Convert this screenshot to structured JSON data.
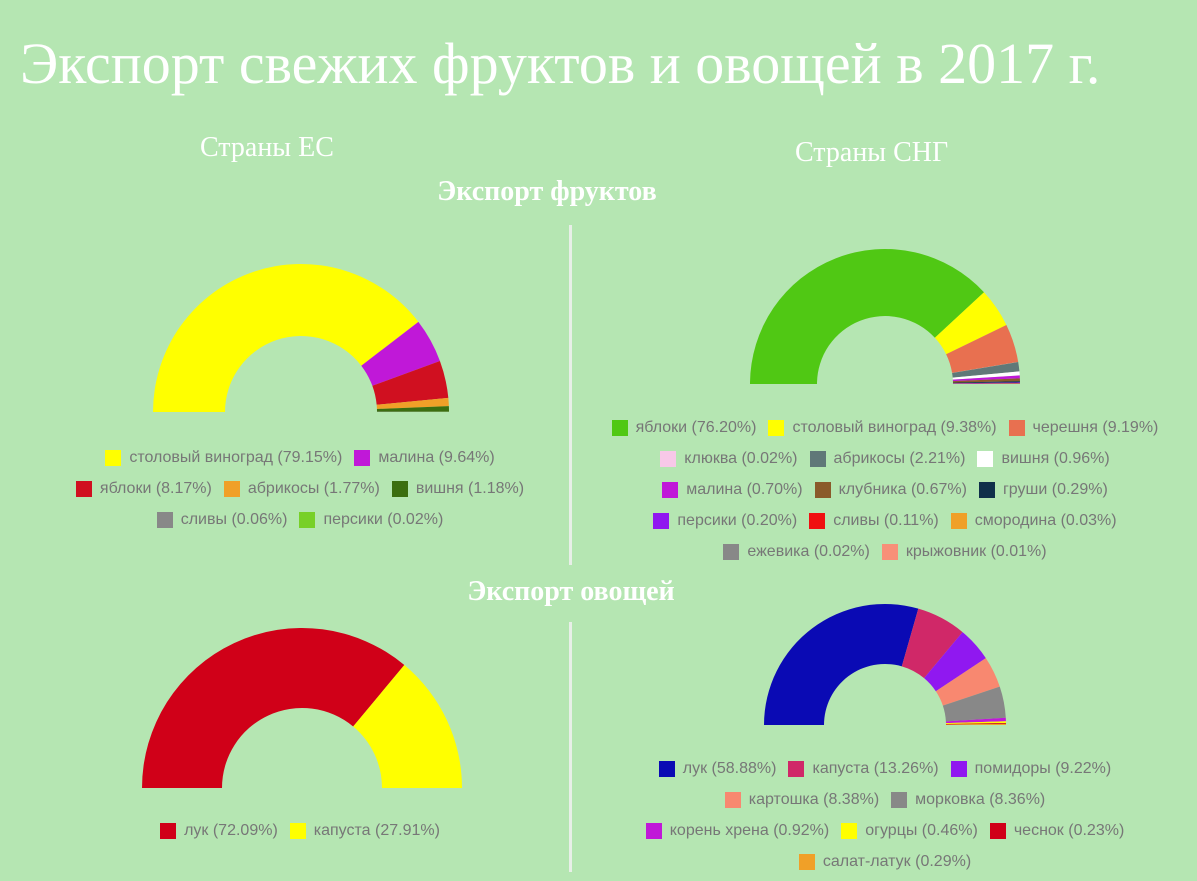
{
  "title": "Экспорт свежих фруктов и овощей в 2017 г.",
  "regions": {
    "eu": "Страны  ЕС",
    "cis": "Страны  СНГ"
  },
  "sections": {
    "fruits": "Экспорт фруктов",
    "vegetables": "Экспорт овощей"
  },
  "chart_data": [
    {
      "type": "pie",
      "variant": "half-donut",
      "slices": [
        {
          "label": "столовый виноград (79.15%)",
          "value": 79.15,
          "color": "#ffff00"
        },
        {
          "label": "малина (9.64%)",
          "value": 9.64,
          "color": "#c018d8"
        },
        {
          "label": "яблоки (8.17%)",
          "value": 8.17,
          "color": "#d01020"
        },
        {
          "label": "абрикосы (1.77%)",
          "value": 1.77,
          "color": "#f0a028"
        },
        {
          "label": "вишня (1.18%)",
          "value": 1.18,
          "color": "#3c6e10"
        },
        {
          "label": "сливы (0.06%)",
          "value": 0.06,
          "color": "#888888"
        },
        {
          "label": "персики (0.02%)",
          "value": 0.02,
          "color": "#78d028"
        }
      ]
    },
    {
      "type": "pie",
      "variant": "half-donut",
      "slices": [
        {
          "label": "яблоки (76.20%)",
          "value": 76.2,
          "color": "#50c814"
        },
        {
          "label": "столовый виноград (9.38%)",
          "value": 9.38,
          "color": "#ffff00"
        },
        {
          "label": "черешня (9.19%)",
          "value": 9.19,
          "color": "#e87050"
        },
        {
          "label": "клюква (0.02%)",
          "value": 0.02,
          "color": "#f8c8e8"
        },
        {
          "label": "абрикосы (2.21%)",
          "value": 2.21,
          "color": "#607878"
        },
        {
          "label": "вишня (0.96%)",
          "value": 0.96,
          "color": "#ffffff"
        },
        {
          "label": "малина (0.70%)",
          "value": 0.7,
          "color": "#c018d8"
        },
        {
          "label": "клубника (0.67%)",
          "value": 0.67,
          "color": "#8a5a2a"
        },
        {
          "label": "груши (0.29%)",
          "value": 0.29,
          "color": "#10304a"
        },
        {
          "label": "персики (0.20%)",
          "value": 0.2,
          "color": "#9018f0"
        },
        {
          "label": "сливы (0.11%)",
          "value": 0.11,
          "color": "#f01010"
        },
        {
          "label": "смородина (0.03%)",
          "value": 0.03,
          "color": "#f0a028"
        },
        {
          "label": "ежевика (0.02%)",
          "value": 0.02,
          "color": "#888888"
        },
        {
          "label": "крыжовник (0.01%)",
          "value": 0.01,
          "color": "#f89078"
        }
      ]
    },
    {
      "type": "pie",
      "variant": "half-donut",
      "slices": [
        {
          "label": "лук (72.09%)",
          "value": 72.09,
          "color": "#d00018"
        },
        {
          "label": "капуста (27.91%)",
          "value": 27.91,
          "color": "#ffff00"
        }
      ]
    },
    {
      "type": "pie",
      "variant": "half-donut",
      "slices": [
        {
          "label": "лук (58.88%)",
          "value": 58.88,
          "color": "#0a0ab4"
        },
        {
          "label": "капуста (13.26%)",
          "value": 13.26,
          "color": "#d02868"
        },
        {
          "label": "помидоры (9.22%)",
          "value": 9.22,
          "color": "#9018f0"
        },
        {
          "label": "картошка (8.38%)",
          "value": 8.38,
          "color": "#f88870"
        },
        {
          "label": "морковка (8.36%)",
          "value": 8.36,
          "color": "#888888"
        },
        {
          "label": "корень хрена (0.92%)",
          "value": 0.92,
          "color": "#c018d8"
        },
        {
          "label": "огурцы (0.46%)",
          "value": 0.46,
          "color": "#ffff00"
        },
        {
          "label": "чеснок (0.23%)",
          "value": 0.23,
          "color": "#d00018"
        },
        {
          "label": "салат-латук (0.29%)",
          "value": 0.29,
          "color": "#f0a028"
        }
      ]
    }
  ]
}
